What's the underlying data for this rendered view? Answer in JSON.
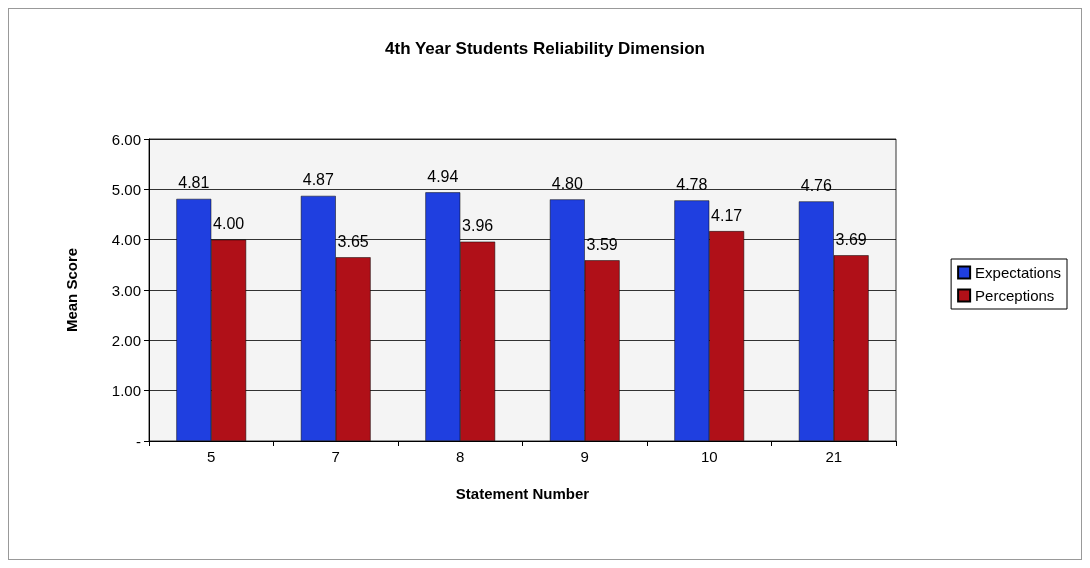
{
  "chart_data": {
    "type": "bar",
    "title": "4th Year Students Reliability Dimension",
    "xlabel": "Statement Number",
    "ylabel": "Mean Score",
    "categories": [
      "5",
      "7",
      "8",
      "9",
      "10",
      "21"
    ],
    "series": [
      {
        "name": "Expectations",
        "color": "#1f3fe0",
        "values": [
          4.81,
          4.87,
          4.94,
          4.8,
          4.78,
          4.76
        ],
        "value_labels": [
          "4.81",
          "4.87",
          "4.94",
          "4.80",
          "4.78",
          "4.76"
        ]
      },
      {
        "name": "Perceptions",
        "color": "#b01018",
        "values": [
          4.0,
          3.65,
          3.96,
          3.59,
          4.17,
          3.69
        ],
        "value_labels": [
          "4.00",
          "3.65",
          "3.96",
          "3.59",
          "4.17",
          "3.69"
        ]
      }
    ],
    "ylim": [
      0,
      6
    ],
    "yticks": [
      {
        "value": 0,
        "label": "-"
      },
      {
        "value": 1,
        "label": "1.00"
      },
      {
        "value": 2,
        "label": "2.00"
      },
      {
        "value": 3,
        "label": "3.00"
      },
      {
        "value": 4,
        "label": "4.00"
      },
      {
        "value": 5,
        "label": "5.00"
      },
      {
        "value": 6,
        "label": "6.00"
      }
    ],
    "grid": "y",
    "legend": "right"
  }
}
